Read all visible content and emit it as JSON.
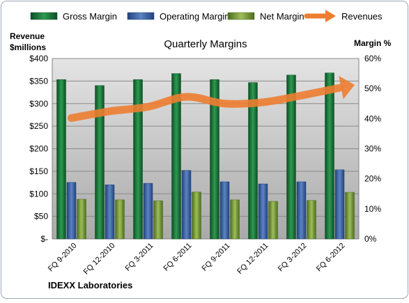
{
  "chart_data": {
    "type": "bar",
    "title": "Quarterly Margins",
    "categories": [
      "FQ 9-2010",
      "FQ 12-2010",
      "FQ 3-2011",
      "FQ 6-2011",
      "FQ 9-2011",
      "FQ 12-2011",
      "FQ 3-2012",
      "FQ 6-2012"
    ],
    "series": [
      {
        "name": "Gross Margin",
        "type": "bar",
        "axis": "right",
        "color": "#1a7a3c",
        "values": [
          53,
          51,
          53,
          55,
          53,
          52,
          54.5,
          55.2
        ]
      },
      {
        "name": "Operating Margin",
        "type": "bar",
        "axis": "right",
        "color": "#3b64a6",
        "values": [
          18.8,
          18.0,
          18.5,
          22.8,
          19.0,
          18.3,
          19.0,
          23.0
        ]
      },
      {
        "name": "Net Margin",
        "type": "bar",
        "axis": "right",
        "color": "#7a9d3c",
        "values": [
          13.2,
          13.0,
          12.7,
          15.6,
          13.0,
          12.5,
          12.8,
          15.5
        ]
      },
      {
        "name": "Revenues",
        "type": "line",
        "axis": "left",
        "color": "#ed7d31",
        "values": [
          268,
          283,
          293,
          315,
          300,
          303,
          318,
          335
        ]
      }
    ],
    "ylabel_left": "Revenue\n$millions",
    "ylabel_right": "Margin %",
    "ylim_left": [
      0,
      400
    ],
    "ylim_right": [
      0,
      60
    ],
    "yticks_left": [
      "$-",
      "$50",
      "$100",
      "$150",
      "$200",
      "$250",
      "$300",
      "$350",
      "$400"
    ],
    "yticks_right": [
      "0%",
      "10%",
      "20%",
      "30%",
      "40%",
      "50%",
      "60%"
    ],
    "legend_position": "top",
    "grid": true,
    "footer": "IDEXX Laboratories"
  }
}
